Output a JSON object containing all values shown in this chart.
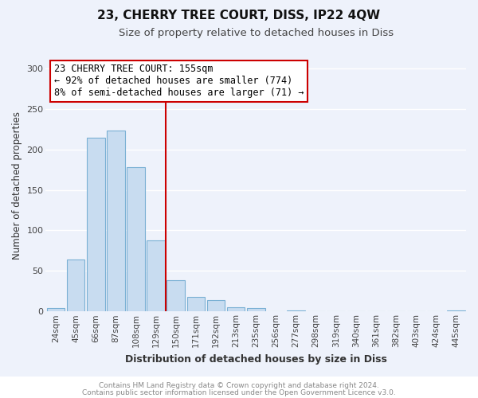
{
  "title1": "23, CHERRY TREE COURT, DISS, IP22 4QW",
  "title2": "Size of property relative to detached houses in Diss",
  "xlabel": "Distribution of detached houses by size in Diss",
  "ylabel": "Number of detached properties",
  "bar_labels": [
    "24sqm",
    "45sqm",
    "66sqm",
    "87sqm",
    "108sqm",
    "129sqm",
    "150sqm",
    "171sqm",
    "192sqm",
    "213sqm",
    "235sqm",
    "256sqm",
    "277sqm",
    "298sqm",
    "319sqm",
    "340sqm",
    "361sqm",
    "382sqm",
    "403sqm",
    "424sqm",
    "445sqm"
  ],
  "bar_values": [
    4,
    64,
    214,
    223,
    178,
    88,
    39,
    18,
    14,
    5,
    4,
    0,
    1,
    0,
    0,
    0,
    0,
    0,
    0,
    0,
    1
  ],
  "bar_color": "#c8dcf0",
  "bar_edge_color": "#7ab0d4",
  "vline_color": "#cc0000",
  "annotation_text": "23 CHERRY TREE COURT: 155sqm\n← 92% of detached houses are smaller (774)\n8% of semi-detached houses are larger (71) →",
  "annotation_box_color": "white",
  "annotation_box_edge_color": "#cc0000",
  "ylim": [
    0,
    310
  ],
  "yticks": [
    0,
    50,
    100,
    150,
    200,
    250,
    300
  ],
  "footer1": "Contains HM Land Registry data © Crown copyright and database right 2024.",
  "footer2": "Contains public sector information licensed under the Open Government Licence v3.0.",
  "bg_color": "#eef2fb",
  "grid_color": "#ffffff",
  "title1_fontsize": 11,
  "title2_fontsize": 9.5,
  "xlabel_fontsize": 9,
  "ylabel_fontsize": 8.5,
  "tick_fontsize": 7.5,
  "footer_fontsize": 6.5,
  "annotation_fontsize": 8.5
}
